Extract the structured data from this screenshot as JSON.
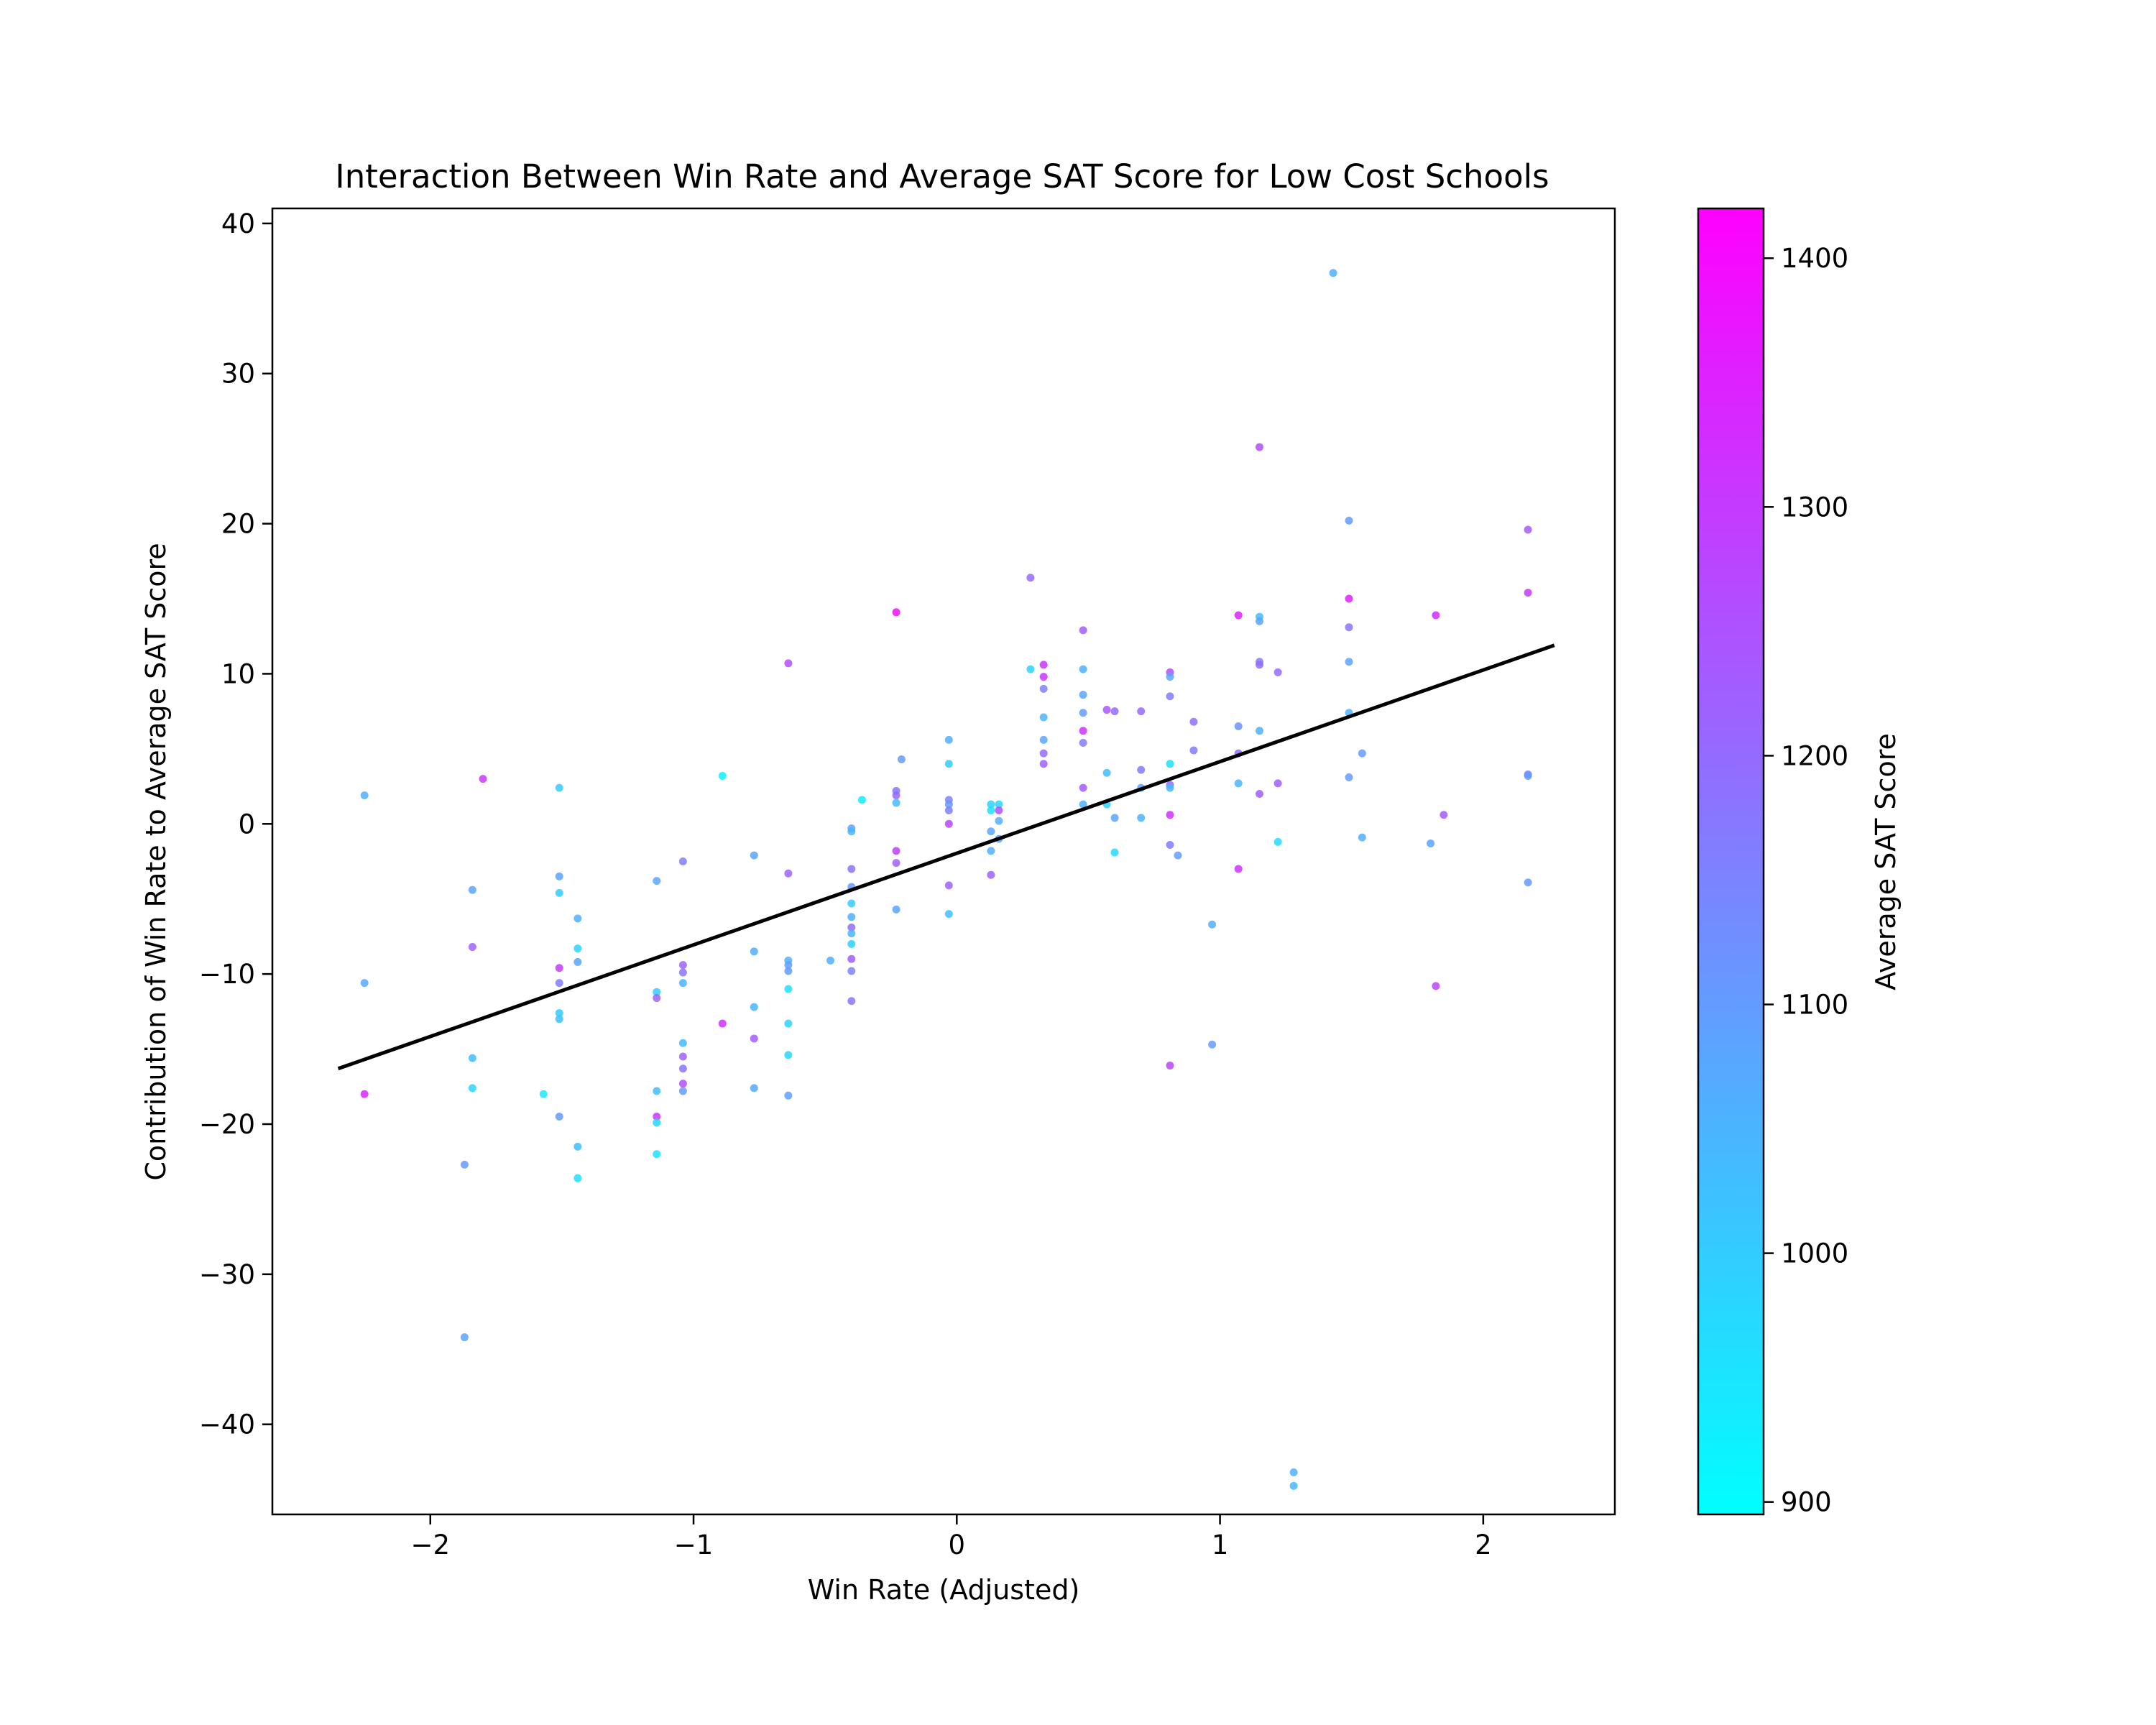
{
  "chart_data": {
    "type": "scatter",
    "title": "Interaction Between Win Rate and Average SAT Score for Low Cost Schools",
    "xlabel": "Win Rate (Adjusted)",
    "ylabel": "Contribution of Win Rate to Average SAT Score",
    "xlim": [
      -2.6,
      2.5
    ],
    "ylim": [
      -46,
      41
    ],
    "x_ticks": [
      -2,
      -1,
      0,
      1,
      2
    ],
    "x_tick_labels": [
      "−2",
      "−1",
      "0",
      "1",
      "2"
    ],
    "y_ticks": [
      -40,
      -30,
      -20,
      -10,
      0,
      10,
      20,
      30,
      40
    ],
    "y_tick_labels": [
      "−40",
      "−30",
      "−20",
      "−10",
      "0",
      "10",
      "20",
      "30",
      "40"
    ],
    "grid": false,
    "colormap": "cool",
    "colorbar": {
      "label": "Average SAT Score",
      "range": [
        895,
        1420
      ],
      "ticks": [
        900,
        1000,
        1100,
        1200,
        1300,
        1400
      ],
      "tick_labels": [
        "900",
        "1000",
        "1100",
        "1200",
        "1300",
        "1400"
      ]
    },
    "trend_line": {
      "color": "#000000",
      "x": [
        -2.35,
        2.27
      ],
      "y": [
        -16.3,
        11.9
      ]
    },
    "points": [
      {
        "x": -2.25,
        "y": 1.9,
        "sat": 1060
      },
      {
        "x": -2.25,
        "y": -10.6,
        "sat": 1070
      },
      {
        "x": -2.25,
        "y": -18.0,
        "sat": 1340
      },
      {
        "x": -1.8,
        "y": 3.0,
        "sat": 1300
      },
      {
        "x": -1.84,
        "y": -4.4,
        "sat": 1080
      },
      {
        "x": -1.84,
        "y": -8.2,
        "sat": 1220
      },
      {
        "x": -1.84,
        "y": -15.6,
        "sat": 1030
      },
      {
        "x": -1.84,
        "y": -17.6,
        "sat": 980
      },
      {
        "x": -1.87,
        "y": -22.7,
        "sat": 1100
      },
      {
        "x": -1.87,
        "y": -34.2,
        "sat": 1080
      },
      {
        "x": -1.57,
        "y": -18.0,
        "sat": 940
      },
      {
        "x": -1.51,
        "y": 2.4,
        "sat": 1000
      },
      {
        "x": -1.51,
        "y": -3.5,
        "sat": 1080
      },
      {
        "x": -1.51,
        "y": -4.6,
        "sat": 1000
      },
      {
        "x": -1.51,
        "y": -9.6,
        "sat": 1300
      },
      {
        "x": -1.51,
        "y": -10.6,
        "sat": 1160
      },
      {
        "x": -1.51,
        "y": -12.6,
        "sat": 1000
      },
      {
        "x": -1.51,
        "y": -13.0,
        "sat": 1030
      },
      {
        "x": -1.51,
        "y": -19.5,
        "sat": 1100
      },
      {
        "x": -1.44,
        "y": -6.3,
        "sat": 1060
      },
      {
        "x": -1.44,
        "y": -8.3,
        "sat": 980
      },
      {
        "x": -1.44,
        "y": -9.2,
        "sat": 1080
      },
      {
        "x": -1.44,
        "y": -21.5,
        "sat": 1030
      },
      {
        "x": -1.44,
        "y": -23.6,
        "sat": 960
      },
      {
        "x": -1.14,
        "y": -3.8,
        "sat": 1080
      },
      {
        "x": -1.14,
        "y": -11.2,
        "sat": 1000
      },
      {
        "x": -1.14,
        "y": -11.6,
        "sat": 1220
      },
      {
        "x": -1.14,
        "y": -17.8,
        "sat": 1030
      },
      {
        "x": -1.14,
        "y": -19.5,
        "sat": 1300
      },
      {
        "x": -1.14,
        "y": -19.9,
        "sat": 980
      },
      {
        "x": -1.14,
        "y": -22.0,
        "sat": 960
      },
      {
        "x": -1.04,
        "y": -2.5,
        "sat": 1160
      },
      {
        "x": -1.04,
        "y": -9.4,
        "sat": 1220
      },
      {
        "x": -1.04,
        "y": -9.9,
        "sat": 1180
      },
      {
        "x": -1.04,
        "y": -10.6,
        "sat": 1050
      },
      {
        "x": -1.04,
        "y": -14.6,
        "sat": 1030
      },
      {
        "x": -1.04,
        "y": -15.5,
        "sat": 1220
      },
      {
        "x": -1.04,
        "y": -16.3,
        "sat": 1180
      },
      {
        "x": -1.04,
        "y": -17.3,
        "sat": 1260
      },
      {
        "x": -1.04,
        "y": -17.8,
        "sat": 1100
      },
      {
        "x": -0.89,
        "y": 3.2,
        "sat": 930
      },
      {
        "x": -0.89,
        "y": -13.3,
        "sat": 1320
      },
      {
        "x": -0.77,
        "y": -2.1,
        "sat": 1080
      },
      {
        "x": -0.77,
        "y": -8.5,
        "sat": 1060
      },
      {
        "x": -0.77,
        "y": -12.2,
        "sat": 1050
      },
      {
        "x": -0.77,
        "y": -14.3,
        "sat": 1230
      },
      {
        "x": -0.77,
        "y": -17.6,
        "sat": 1070
      },
      {
        "x": -0.64,
        "y": 10.7,
        "sat": 1260
      },
      {
        "x": -0.64,
        "y": -3.3,
        "sat": 1220
      },
      {
        "x": -0.64,
        "y": -9.1,
        "sat": 1060
      },
      {
        "x": -0.64,
        "y": -9.4,
        "sat": 1090
      },
      {
        "x": -0.64,
        "y": -9.8,
        "sat": 1100
      },
      {
        "x": -0.64,
        "y": -11.0,
        "sat": 960
      },
      {
        "x": -0.64,
        "y": -13.3,
        "sat": 990
      },
      {
        "x": -0.64,
        "y": -15.4,
        "sat": 980
      },
      {
        "x": -0.64,
        "y": -18.1,
        "sat": 1090
      },
      {
        "x": -0.48,
        "y": -9.1,
        "sat": 1060
      },
      {
        "x": -0.36,
        "y": 1.6,
        "sat": 940
      },
      {
        "x": -0.4,
        "y": -0.3,
        "sat": 1080
      },
      {
        "x": -0.4,
        "y": -0.5,
        "sat": 1050
      },
      {
        "x": -0.4,
        "y": -3.0,
        "sat": 1180
      },
      {
        "x": -0.4,
        "y": -4.2,
        "sat": 1100
      },
      {
        "x": -0.4,
        "y": -5.3,
        "sat": 1000
      },
      {
        "x": -0.4,
        "y": -6.2,
        "sat": 1060
      },
      {
        "x": -0.4,
        "y": -6.9,
        "sat": 1200
      },
      {
        "x": -0.4,
        "y": -7.3,
        "sat": 1050
      },
      {
        "x": -0.4,
        "y": -8.0,
        "sat": 990
      },
      {
        "x": -0.4,
        "y": -9.0,
        "sat": 1230
      },
      {
        "x": -0.4,
        "y": -9.8,
        "sat": 1150
      },
      {
        "x": -0.4,
        "y": -11.8,
        "sat": 1180
      },
      {
        "x": -0.23,
        "y": 14.1,
        "sat": 1390
      },
      {
        "x": -0.23,
        "y": 2.2,
        "sat": 1180
      },
      {
        "x": -0.23,
        "y": 1.9,
        "sat": 1200
      },
      {
        "x": -0.23,
        "y": 1.4,
        "sat": 1040
      },
      {
        "x": -0.23,
        "y": -1.8,
        "sat": 1290
      },
      {
        "x": -0.23,
        "y": -2.6,
        "sat": 1220
      },
      {
        "x": -0.23,
        "y": -5.7,
        "sat": 1080
      },
      {
        "x": -0.21,
        "y": 4.3,
        "sat": 1100
      },
      {
        "x": -0.03,
        "y": 5.6,
        "sat": 1060
      },
      {
        "x": -0.03,
        "y": 4.0,
        "sat": 1000
      },
      {
        "x": -0.03,
        "y": 1.6,
        "sat": 1150
      },
      {
        "x": -0.03,
        "y": 1.3,
        "sat": 1100
      },
      {
        "x": -0.03,
        "y": 0.9,
        "sat": 1160
      },
      {
        "x": -0.03,
        "y": 0.0,
        "sat": 1280
      },
      {
        "x": -0.03,
        "y": -4.1,
        "sat": 1220
      },
      {
        "x": -0.03,
        "y": -6.0,
        "sat": 1030
      },
      {
        "x": 0.13,
        "y": 1.3,
        "sat": 990
      },
      {
        "x": 0.13,
        "y": 0.9,
        "sat": 960
      },
      {
        "x": 0.13,
        "y": -0.5,
        "sat": 1080
      },
      {
        "x": 0.13,
        "y": -1.8,
        "sat": 1060
      },
      {
        "x": 0.13,
        "y": -3.4,
        "sat": 1220
      },
      {
        "x": 0.16,
        "y": 1.3,
        "sat": 980
      },
      {
        "x": 0.16,
        "y": 0.9,
        "sat": 1250
      },
      {
        "x": 0.16,
        "y": 0.2,
        "sat": 1060
      },
      {
        "x": 0.16,
        "y": -1.0,
        "sat": 1080
      },
      {
        "x": 0.28,
        "y": 16.4,
        "sat": 1200
      },
      {
        "x": 0.28,
        "y": 10.3,
        "sat": 990
      },
      {
        "x": 0.33,
        "y": 10.6,
        "sat": 1310
      },
      {
        "x": 0.33,
        "y": 9.8,
        "sat": 1320
      },
      {
        "x": 0.33,
        "y": 9.0,
        "sat": 1150
      },
      {
        "x": 0.33,
        "y": 7.1,
        "sat": 1050
      },
      {
        "x": 0.33,
        "y": 5.6,
        "sat": 1080
      },
      {
        "x": 0.33,
        "y": 4.7,
        "sat": 1200
      },
      {
        "x": 0.33,
        "y": 4.0,
        "sat": 1220
      },
      {
        "x": 0.48,
        "y": 12.9,
        "sat": 1230
      },
      {
        "x": 0.48,
        "y": 10.3,
        "sat": 1060
      },
      {
        "x": 0.48,
        "y": 8.6,
        "sat": 1080
      },
      {
        "x": 0.48,
        "y": 7.4,
        "sat": 1100
      },
      {
        "x": 0.48,
        "y": 6.2,
        "sat": 1320
      },
      {
        "x": 0.48,
        "y": 5.4,
        "sat": 1160
      },
      {
        "x": 0.48,
        "y": 2.4,
        "sat": 1230
      },
      {
        "x": 0.48,
        "y": 1.3,
        "sat": 1060
      },
      {
        "x": 0.57,
        "y": 7.6,
        "sat": 1240
      },
      {
        "x": 0.57,
        "y": 3.4,
        "sat": 1030
      },
      {
        "x": 0.57,
        "y": 1.3,
        "sat": 990
      },
      {
        "x": 0.6,
        "y": 7.5,
        "sat": 1200
      },
      {
        "x": 0.6,
        "y": 0.4,
        "sat": 1080
      },
      {
        "x": 0.6,
        "y": -1.9,
        "sat": 970
      },
      {
        "x": 0.7,
        "y": 7.5,
        "sat": 1200
      },
      {
        "x": 0.7,
        "y": 3.6,
        "sat": 1160
      },
      {
        "x": 0.7,
        "y": 2.4,
        "sat": 1080
      },
      {
        "x": 0.7,
        "y": 0.4,
        "sat": 1050
      },
      {
        "x": 0.81,
        "y": 10.1,
        "sat": 1260
      },
      {
        "x": 0.81,
        "y": 9.8,
        "sat": 1080
      },
      {
        "x": 0.81,
        "y": 8.5,
        "sat": 1160
      },
      {
        "x": 0.81,
        "y": 4.0,
        "sat": 960
      },
      {
        "x": 0.81,
        "y": 2.6,
        "sat": 1200
      },
      {
        "x": 0.81,
        "y": 2.4,
        "sat": 1040
      },
      {
        "x": 0.81,
        "y": 0.6,
        "sat": 1320
      },
      {
        "x": 0.81,
        "y": -1.4,
        "sat": 1160
      },
      {
        "x": 0.84,
        "y": -2.1,
        "sat": 1100
      },
      {
        "x": 0.81,
        "y": -16.1,
        "sat": 1280
      },
      {
        "x": 0.9,
        "y": 6.8,
        "sat": 1200
      },
      {
        "x": 0.9,
        "y": 4.9,
        "sat": 1160
      },
      {
        "x": 0.97,
        "y": -6.7,
        "sat": 1060
      },
      {
        "x": 0.97,
        "y": -14.7,
        "sat": 1100
      },
      {
        "x": 1.07,
        "y": 13.9,
        "sat": 1350
      },
      {
        "x": 1.07,
        "y": 6.5,
        "sat": 1120
      },
      {
        "x": 1.07,
        "y": 4.7,
        "sat": 1200
      },
      {
        "x": 1.07,
        "y": 2.7,
        "sat": 1050
      },
      {
        "x": 1.07,
        "y": -3.0,
        "sat": 1320
      },
      {
        "x": 1.15,
        "y": 25.1,
        "sat": 1260
      },
      {
        "x": 1.15,
        "y": 13.8,
        "sat": 1030
      },
      {
        "x": 1.15,
        "y": 13.5,
        "sat": 1080
      },
      {
        "x": 1.15,
        "y": 10.8,
        "sat": 1160
      },
      {
        "x": 1.15,
        "y": 10.6,
        "sat": 1200
      },
      {
        "x": 1.15,
        "y": 6.2,
        "sat": 1060
      },
      {
        "x": 1.15,
        "y": 2.0,
        "sat": 1230
      },
      {
        "x": 1.22,
        "y": 10.1,
        "sat": 1200
      },
      {
        "x": 1.22,
        "y": 2.7,
        "sat": 1230
      },
      {
        "x": 1.22,
        "y": -1.2,
        "sat": 970
      },
      {
        "x": 1.28,
        "y": -43.2,
        "sat": 1060
      },
      {
        "x": 1.28,
        "y": -44.1,
        "sat": 1040
      },
      {
        "x": 1.43,
        "y": 36.7,
        "sat": 1060
      },
      {
        "x": 1.49,
        "y": 20.2,
        "sat": 1100
      },
      {
        "x": 1.49,
        "y": 15.0,
        "sat": 1350
      },
      {
        "x": 1.49,
        "y": 13.1,
        "sat": 1180
      },
      {
        "x": 1.49,
        "y": 10.8,
        "sat": 1080
      },
      {
        "x": 1.49,
        "y": 7.4,
        "sat": 1050
      },
      {
        "x": 1.49,
        "y": 3.1,
        "sat": 1100
      },
      {
        "x": 1.54,
        "y": 4.7,
        "sat": 1100
      },
      {
        "x": 1.54,
        "y": -0.9,
        "sat": 1060
      },
      {
        "x": 1.8,
        "y": -1.3,
        "sat": 1080
      },
      {
        "x": 1.82,
        "y": 13.9,
        "sat": 1330
      },
      {
        "x": 1.82,
        "y": -10.8,
        "sat": 1280
      },
      {
        "x": 1.85,
        "y": 0.6,
        "sat": 1230
      },
      {
        "x": 2.17,
        "y": 19.6,
        "sat": 1230
      },
      {
        "x": 2.17,
        "y": 15.4,
        "sat": 1300
      },
      {
        "x": 2.17,
        "y": 3.3,
        "sat": 1160
      },
      {
        "x": 2.17,
        "y": 3.2,
        "sat": 1100
      },
      {
        "x": 2.17,
        "y": -3.9,
        "sat": 1100
      }
    ]
  }
}
